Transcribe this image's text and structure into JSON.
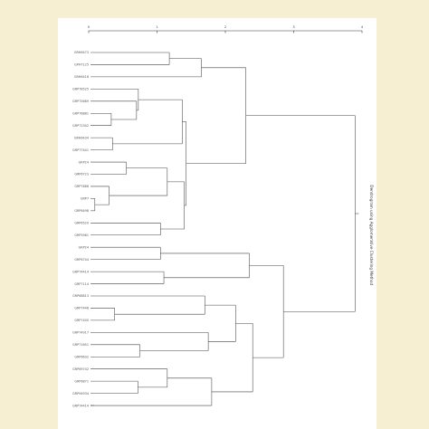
{
  "chart_data": {
    "type": "dendrogram",
    "axis_ticks": [
      "0",
      "1",
      "2",
      "3",
      "4"
    ],
    "side_label": "Dendrogram using Agglomerative Clustering Method",
    "leaves": [
      "GRH6473",
      "GPH7125",
      "GRH6418",
      "GRP78525",
      "GRP75669",
      "GRP76881",
      "GRP72342",
      "GRH6434",
      "GRP77441",
      "GRP24",
      "GRP6723",
      "GRP7886",
      "GRP7",
      "GRP6498",
      "GRP6520",
      "GRP5981",
      "GRP24",
      "GRP6744",
      "GRP74414",
      "GRP7114",
      "GRP68813",
      "GRP7446",
      "GRP7400",
      "GRP74917",
      "GRP71651",
      "GRP6632",
      "GRP69742",
      "GRP6871",
      "GRP94934",
      "GRP74414"
    ]
  }
}
